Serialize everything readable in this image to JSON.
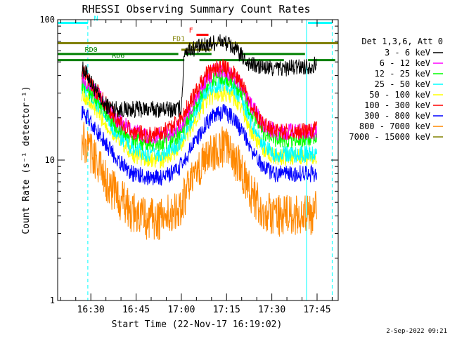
{
  "chart_data": {
    "type": "line",
    "title": "RHESSI Observing Summary Count Rates",
    "xlabel": "Start Time (22-Nov-17 16:19:02)",
    "ylabel": "Count Rate (s⁻¹ detector⁻¹)",
    "xscale": "linear",
    "yscale": "log",
    "xlim_minutes": [
      0,
      93
    ],
    "ylim": [
      1,
      100
    ],
    "x_ticks": [
      {
        "t": 11,
        "label": "16:30"
      },
      {
        "t": 26,
        "label": "16:45"
      },
      {
        "t": 41,
        "label": "17:00"
      },
      {
        "t": 56,
        "label": "17:15"
      },
      {
        "t": 71,
        "label": "17:30"
      },
      {
        "t": 86,
        "label": "17:45"
      }
    ],
    "y_ticks": [
      {
        "v": 1,
        "label": "1"
      },
      {
        "v": 10,
        "label": "10"
      },
      {
        "v": 100,
        "label": "100"
      }
    ],
    "legend_title": "Det 1,3,6, Att 0",
    "legend_position": "right",
    "series": [
      {
        "name": "3 - 6 keV",
        "color": "#000000",
        "times": [
          8,
          10,
          11,
          13,
          15,
          20,
          30,
          34,
          38,
          40,
          41,
          42,
          44,
          48,
          51,
          54,
          56,
          58,
          60,
          62,
          64,
          67,
          70,
          75,
          80,
          84,
          86
        ],
        "values": [
          45,
          40,
          36,
          30,
          25,
          23,
          23,
          23,
          23,
          23,
          24,
          60,
          62,
          64,
          68,
          70,
          68,
          64,
          58,
          52,
          48,
          46,
          45,
          45,
          46,
          47,
          48
        ]
      },
      {
        "name": "6 - 12 keV",
        "color": "#ff00ff",
        "times": [
          8,
          10,
          13,
          16,
          20,
          25,
          30,
          35,
          40,
          43,
          46,
          49,
          52,
          55,
          58,
          61,
          64,
          68,
          72,
          76,
          80,
          84,
          86
        ],
        "values": [
          40,
          36,
          30,
          25,
          19,
          16,
          15,
          15,
          17,
          21,
          28,
          37,
          43,
          44,
          41,
          34,
          25,
          18,
          16,
          16,
          16,
          16,
          16
        ]
      },
      {
        "name": "12 - 25 keV",
        "color": "#00ff00",
        "times": [
          8,
          10,
          13,
          16,
          20,
          25,
          30,
          35,
          40,
          43,
          46,
          49,
          52,
          55,
          58,
          61,
          64,
          68,
          72,
          76,
          80,
          84,
          86
        ],
        "values": [
          36,
          32,
          27,
          22,
          17,
          14,
          13,
          13,
          15,
          19,
          25,
          33,
          38,
          39,
          36,
          30,
          22,
          16,
          14,
          14,
          14,
          14,
          14
        ]
      },
      {
        "name": "25 - 50 keV",
        "color": "#00ffff",
        "times": [
          8,
          10,
          13,
          16,
          20,
          25,
          30,
          35,
          40,
          43,
          46,
          49,
          52,
          55,
          58,
          61,
          64,
          68,
          72,
          76,
          80,
          84,
          86
        ],
        "values": [
          34,
          30,
          25,
          20,
          15,
          12,
          11,
          11,
          13,
          17,
          23,
          30,
          34,
          35,
          33,
          27,
          19,
          13,
          11,
          11,
          11,
          11,
          11
        ]
      },
      {
        "name": "50 - 100 keV",
        "color": "#ffff00",
        "times": [
          8,
          10,
          13,
          16,
          20,
          25,
          30,
          35,
          40,
          43,
          46,
          49,
          52,
          55,
          58,
          61,
          64,
          68,
          72,
          76,
          80,
          84,
          86
        ],
        "values": [
          30,
          27,
          22,
          18,
          14,
          11,
          10,
          10,
          12,
          15,
          20,
          26,
          29,
          30,
          28,
          23,
          16,
          12,
          10.5,
          10.5,
          10.5,
          10.5,
          10.5
        ]
      },
      {
        "name": "100 - 300 keV",
        "color": "#ff0000",
        "times": [
          8,
          10,
          13,
          16,
          20,
          25,
          30,
          35,
          40,
          43,
          46,
          49,
          52,
          55,
          58,
          61,
          64,
          68,
          72,
          76,
          80,
          84,
          86
        ],
        "values": [
          43,
          38,
          31,
          25,
          19,
          16,
          15,
          16,
          19,
          24,
          31,
          40,
          45,
          46,
          42,
          35,
          25,
          18,
          16,
          16,
          16,
          16,
          17
        ]
      },
      {
        "name": "300 - 800 keV",
        "color": "#0000ff",
        "times": [
          8,
          10,
          13,
          16,
          20,
          25,
          30,
          35,
          40,
          43,
          46,
          49,
          52,
          55,
          58,
          61,
          64,
          68,
          72,
          76,
          80,
          84,
          86
        ],
        "values": [
          22,
          20,
          16,
          13,
          10,
          8,
          7.5,
          7.5,
          8.5,
          11,
          14,
          18,
          21,
          22,
          20,
          16,
          12,
          9,
          8,
          8,
          8,
          8,
          8
        ]
      },
      {
        "name": "800 - 7000 keV",
        "color": "#ff8800",
        "times": [
          8,
          10,
          13,
          16,
          20,
          25,
          30,
          35,
          40,
          43,
          46,
          49,
          52,
          55,
          58,
          61,
          64,
          68,
          72,
          76,
          80,
          84,
          86
        ],
        "values": [
          14,
          12,
          10,
          7,
          5.5,
          4.2,
          3.8,
          3.8,
          4.5,
          6,
          8,
          10.5,
          12,
          12.5,
          11,
          8.5,
          6,
          4.5,
          4,
          4,
          4,
          4,
          4.5
        ]
      },
      {
        "name": "7000 - 15000 keV",
        "color": "#808000",
        "times": [],
        "values": []
      }
    ],
    "state_bars": [
      {
        "label": "N",
        "color": "#00ffff",
        "y": 95,
        "segments": [
          [
            0,
            10
          ],
          [
            83,
            91
          ]
        ],
        "label_t": 12
      },
      {
        "label": "F",
        "color": "#ff0000",
        "y": 78,
        "segments": [
          [
            46,
            50
          ]
        ],
        "label_t": 43.5
      },
      {
        "label": "FD1",
        "color": "#808000",
        "y": 68,
        "segments": [
          [
            0,
            93
          ]
        ],
        "label_t": 38
      },
      {
        "label": "FD",
        "color": "#808000",
        "y": 61,
        "segments": [
          [
            41,
            51
          ]
        ],
        "label_t": 43
      },
      {
        "label": "RD0",
        "color": "#008000",
        "y": 57,
        "segments": [
          [
            0,
            40
          ],
          [
            42,
            51
          ],
          [
            61,
            82
          ]
        ],
        "label_t": 9
      },
      {
        "label": "RD6",
        "color": "#008000",
        "y": 51.5,
        "segments": [
          [
            0,
            42
          ],
          [
            47,
            75
          ],
          [
            83,
            92
          ]
        ],
        "label_t": 18
      }
    ],
    "vertical_markers": [
      {
        "t": 0,
        "color": "#00ffff",
        "style": "solid"
      },
      {
        "t": 10,
        "color": "#00ffff",
        "style": "dashed"
      },
      {
        "t": 82.5,
        "color": "#00ffff",
        "style": "solid"
      },
      {
        "t": 91,
        "color": "#00ffff",
        "style": "dashed"
      }
    ],
    "footer_date": "2-Sep-2022 09:21"
  }
}
